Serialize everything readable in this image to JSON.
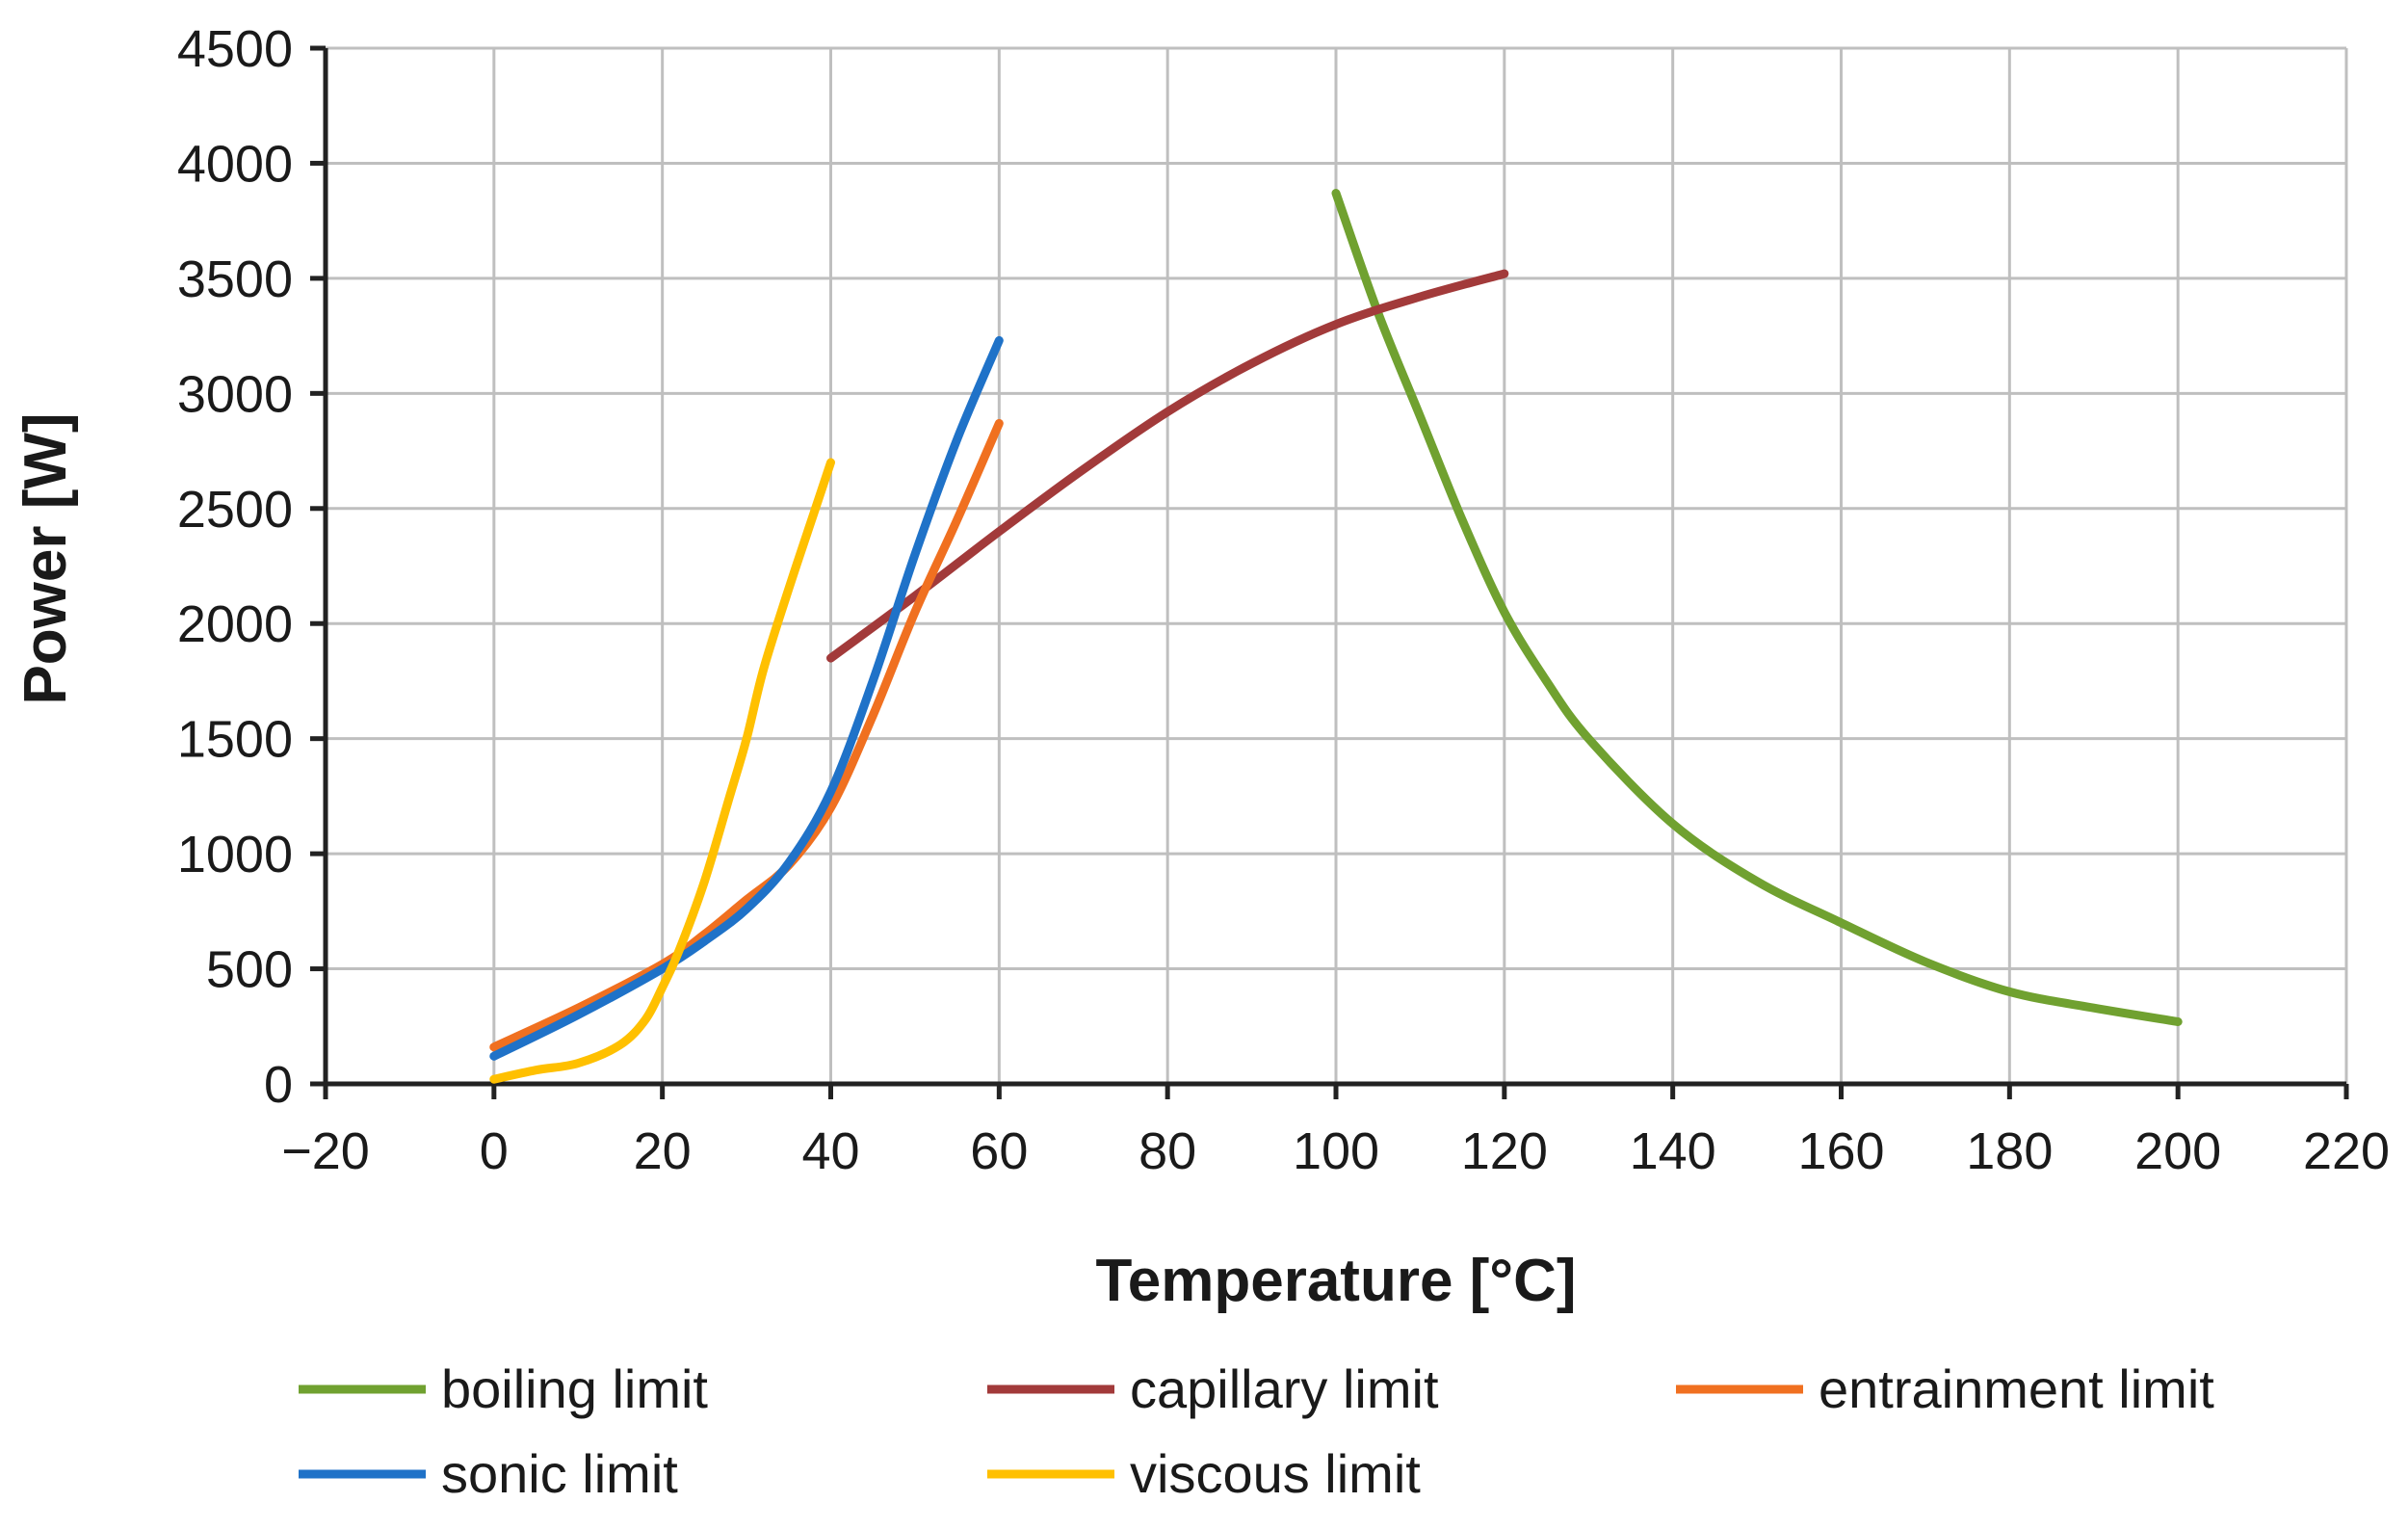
{
  "chart_data": {
    "type": "line",
    "title": "",
    "xlabel": "Temperature [°C]",
    "ylabel": "Power [W]",
    "xlim": [
      -20,
      220
    ],
    "ylim": [
      0,
      4500
    ],
    "x_ticks": [
      -20,
      0,
      20,
      40,
      60,
      80,
      100,
      120,
      140,
      160,
      180,
      200,
      220
    ],
    "x_tick_labels": [
      "−20",
      "0",
      "20",
      "40",
      "60",
      "80",
      "100",
      "120",
      "140",
      "160",
      "180",
      "200",
      "220"
    ],
    "y_ticks": [
      0,
      500,
      1000,
      1500,
      2000,
      2500,
      3000,
      3500,
      4000,
      4500
    ],
    "y_tick_labels": [
      "0",
      "500",
      "1000",
      "1500",
      "2000",
      "2500",
      "3000",
      "3500",
      "4000",
      "4500"
    ],
    "grid": true,
    "legend_position": "bottom",
    "series": [
      {
        "name": "boiling limit",
        "color": "#70a130",
        "x": [
          100,
          105,
          110,
          115,
          120,
          125,
          130,
          140,
          150,
          160,
          170,
          180,
          190,
          200
        ],
        "y": [
          3870,
          3350,
          2900,
          2450,
          2050,
          1750,
          1500,
          1130,
          880,
          700,
          530,
          400,
          330,
          270
        ]
      },
      {
        "name": "capillary limit",
        "color": "#a23a3a",
        "x": [
          40,
          50,
          60,
          70,
          80,
          90,
          100,
          110,
          120
        ],
        "y": [
          1850,
          2120,
          2400,
          2670,
          2920,
          3130,
          3300,
          3420,
          3520
        ]
      },
      {
        "name": "entrainment limit",
        "color": "#f07020",
        "x": [
          0,
          10,
          20,
          25,
          30,
          35,
          40,
          45,
          50,
          55,
          60
        ],
        "y": [
          160,
          330,
          520,
          650,
          800,
          950,
          1200,
          1600,
          2050,
          2450,
          2870
        ]
      },
      {
        "name": "sonic limit",
        "color": "#1f72c8",
        "x": [
          0,
          10,
          20,
          25,
          30,
          35,
          40,
          45,
          50,
          55,
          60
        ],
        "y": [
          120,
          300,
          500,
          620,
          760,
          960,
          1270,
          1750,
          2300,
          2800,
          3230
        ]
      },
      {
        "name": "viscous limit",
        "color": "#ffc000",
        "x": [
          0,
          5,
          10,
          15,
          18,
          20,
          22,
          25,
          28,
          30,
          32,
          35,
          38,
          40
        ],
        "y": [
          20,
          60,
          90,
          170,
          280,
          420,
          580,
          880,
          1250,
          1500,
          1800,
          2150,
          2480,
          2700
        ]
      }
    ]
  }
}
